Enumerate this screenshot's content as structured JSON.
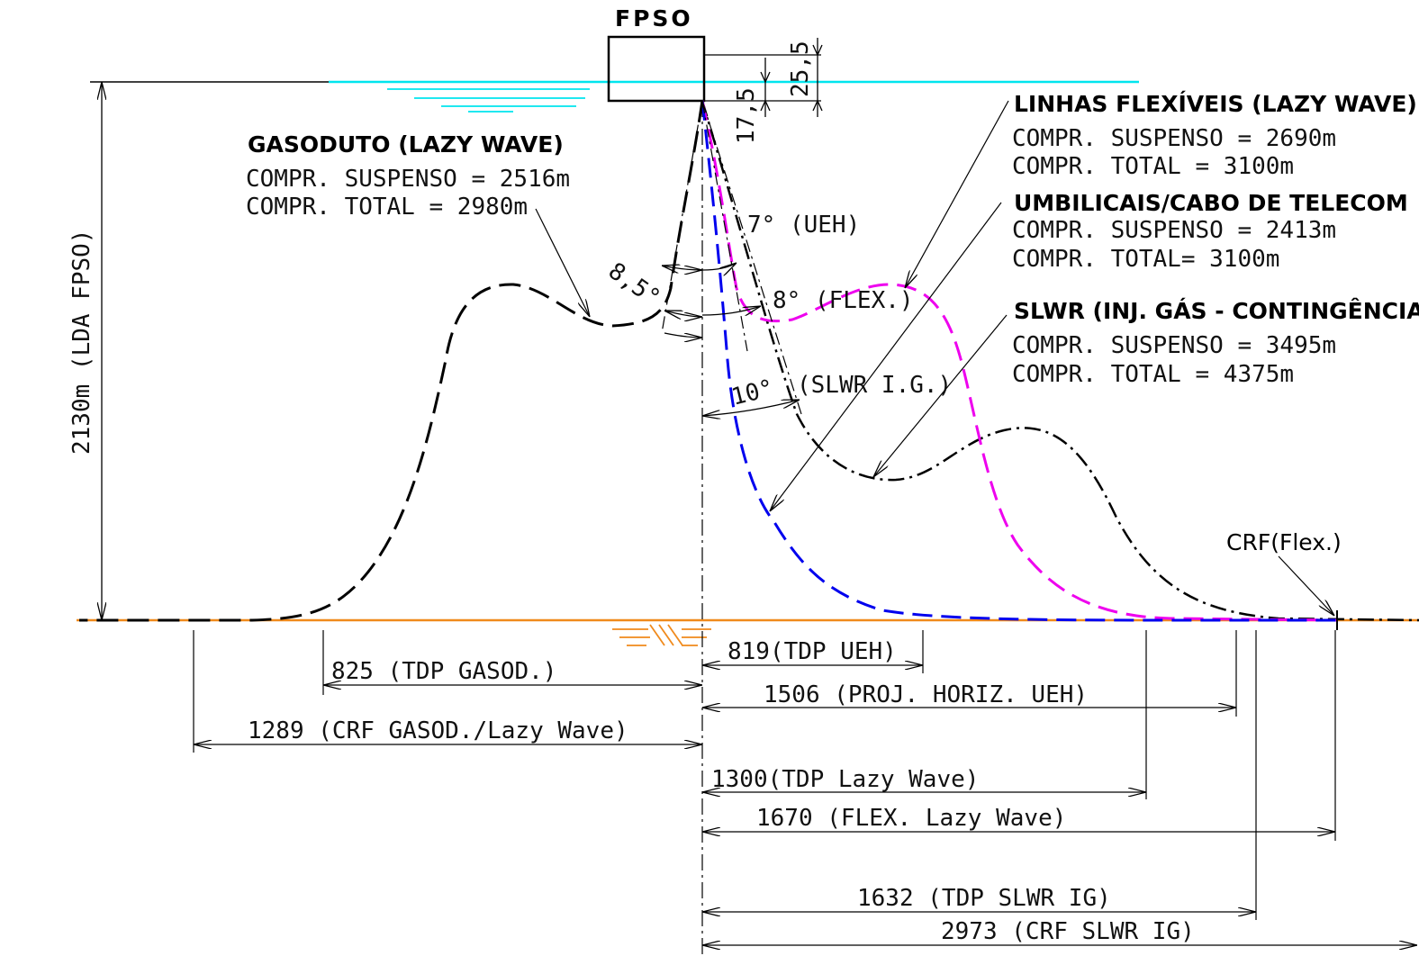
{
  "diagram": {
    "fpso_label": "FPSO",
    "dims": {
      "d1": "25,5",
      "d2": "17,5"
    },
    "depth_label": "2130m (LDA FPSO)",
    "angles": {
      "gas": "8,5°",
      "ueh": "7° (UEH)",
      "flex": "8° (FLEX.)",
      "slwr_deg": "10°",
      "slwr": "(SLWR I.G.)"
    },
    "gasoduto": {
      "title": "GASODUTO (LAZY WAVE)",
      "line1": "COMPR. SUSPENSO = 2516m",
      "line2": "COMPR. TOTAL = 2980m"
    },
    "flexiveis": {
      "title": "LINHAS FLEXÍVEIS (LAZY WAVE)",
      "line1": "COMPR. SUSPENSO = 2690m",
      "line2": "COMPR. TOTAL = 3100m"
    },
    "umbilicais": {
      "title": "UMBILICAIS/CABO DE TELECOM",
      "line1": "COMPR. SUSPENSO = 2413m",
      "line2": "COMPR. TOTAL= 3100m"
    },
    "slwr": {
      "title": "SLWR (INJ. GÁS - CONTINGÊNCIA)",
      "line1": "COMPR. SUSPENSO = 3495m",
      "line2": "COMPR. TOTAL = 4375m"
    },
    "crf_label": "CRF(Flex.)",
    "distances": {
      "tdp_ueh": "819(TDP UEH)",
      "tdp_gasod": "825 (TDP GASOD.)",
      "proj_ueh": "1506 (PROJ. HORIZ. UEH)",
      "crf_gasod": "1289 (CRF GASOD./Lazy Wave)",
      "tdp_lazy": "1300(TDP Lazy Wave)",
      "flex_lazy": "1670 (FLEX. Lazy Wave)",
      "tdp_slwr": "1632 (TDP SLWR IG)",
      "crf_slwr": "2973 (CRF SLWR IG)"
    },
    "colors": {
      "water": "#00e5ee",
      "seabed": "#f08a1c",
      "gasoduto": "#000000",
      "umbilical": "#0000ee",
      "flexivel": "#ee00ee",
      "slwr": "#000000"
    }
  }
}
